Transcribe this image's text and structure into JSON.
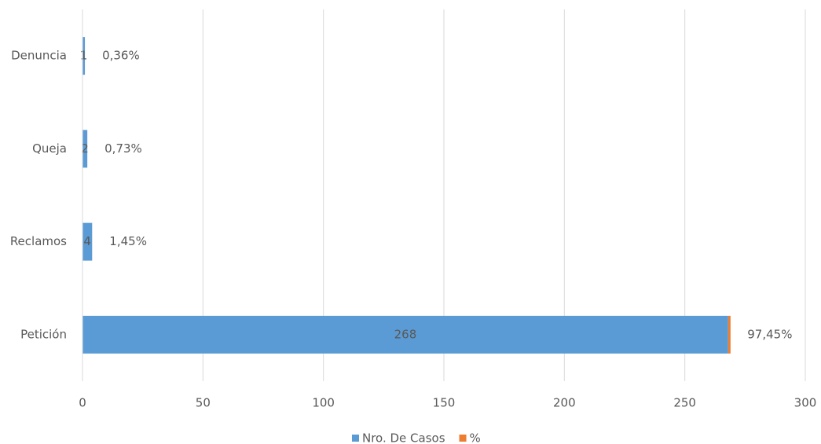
{
  "chart_data": {
    "type": "stacked-hbar",
    "categories": [
      "Denuncia",
      "Queja",
      "Reclamos",
      "Petición"
    ],
    "series": [
      {
        "name": "Nro. De Casos",
        "color": "#5b9bd5",
        "values": [
          1,
          2,
          4,
          268
        ]
      },
      {
        "name": "%",
        "color": "#ed7d31",
        "values": [
          0.0036,
          0.0073,
          0.0145,
          0.9745
        ],
        "value_labels": [
          "0,36%",
          "0,73%",
          "1,45%",
          "97,45%"
        ]
      }
    ],
    "xlim": [
      0,
      300
    ],
    "xticks": [
      0,
      50,
      100,
      150,
      200,
      250,
      300
    ],
    "grid": true,
    "legend": "bottom"
  }
}
